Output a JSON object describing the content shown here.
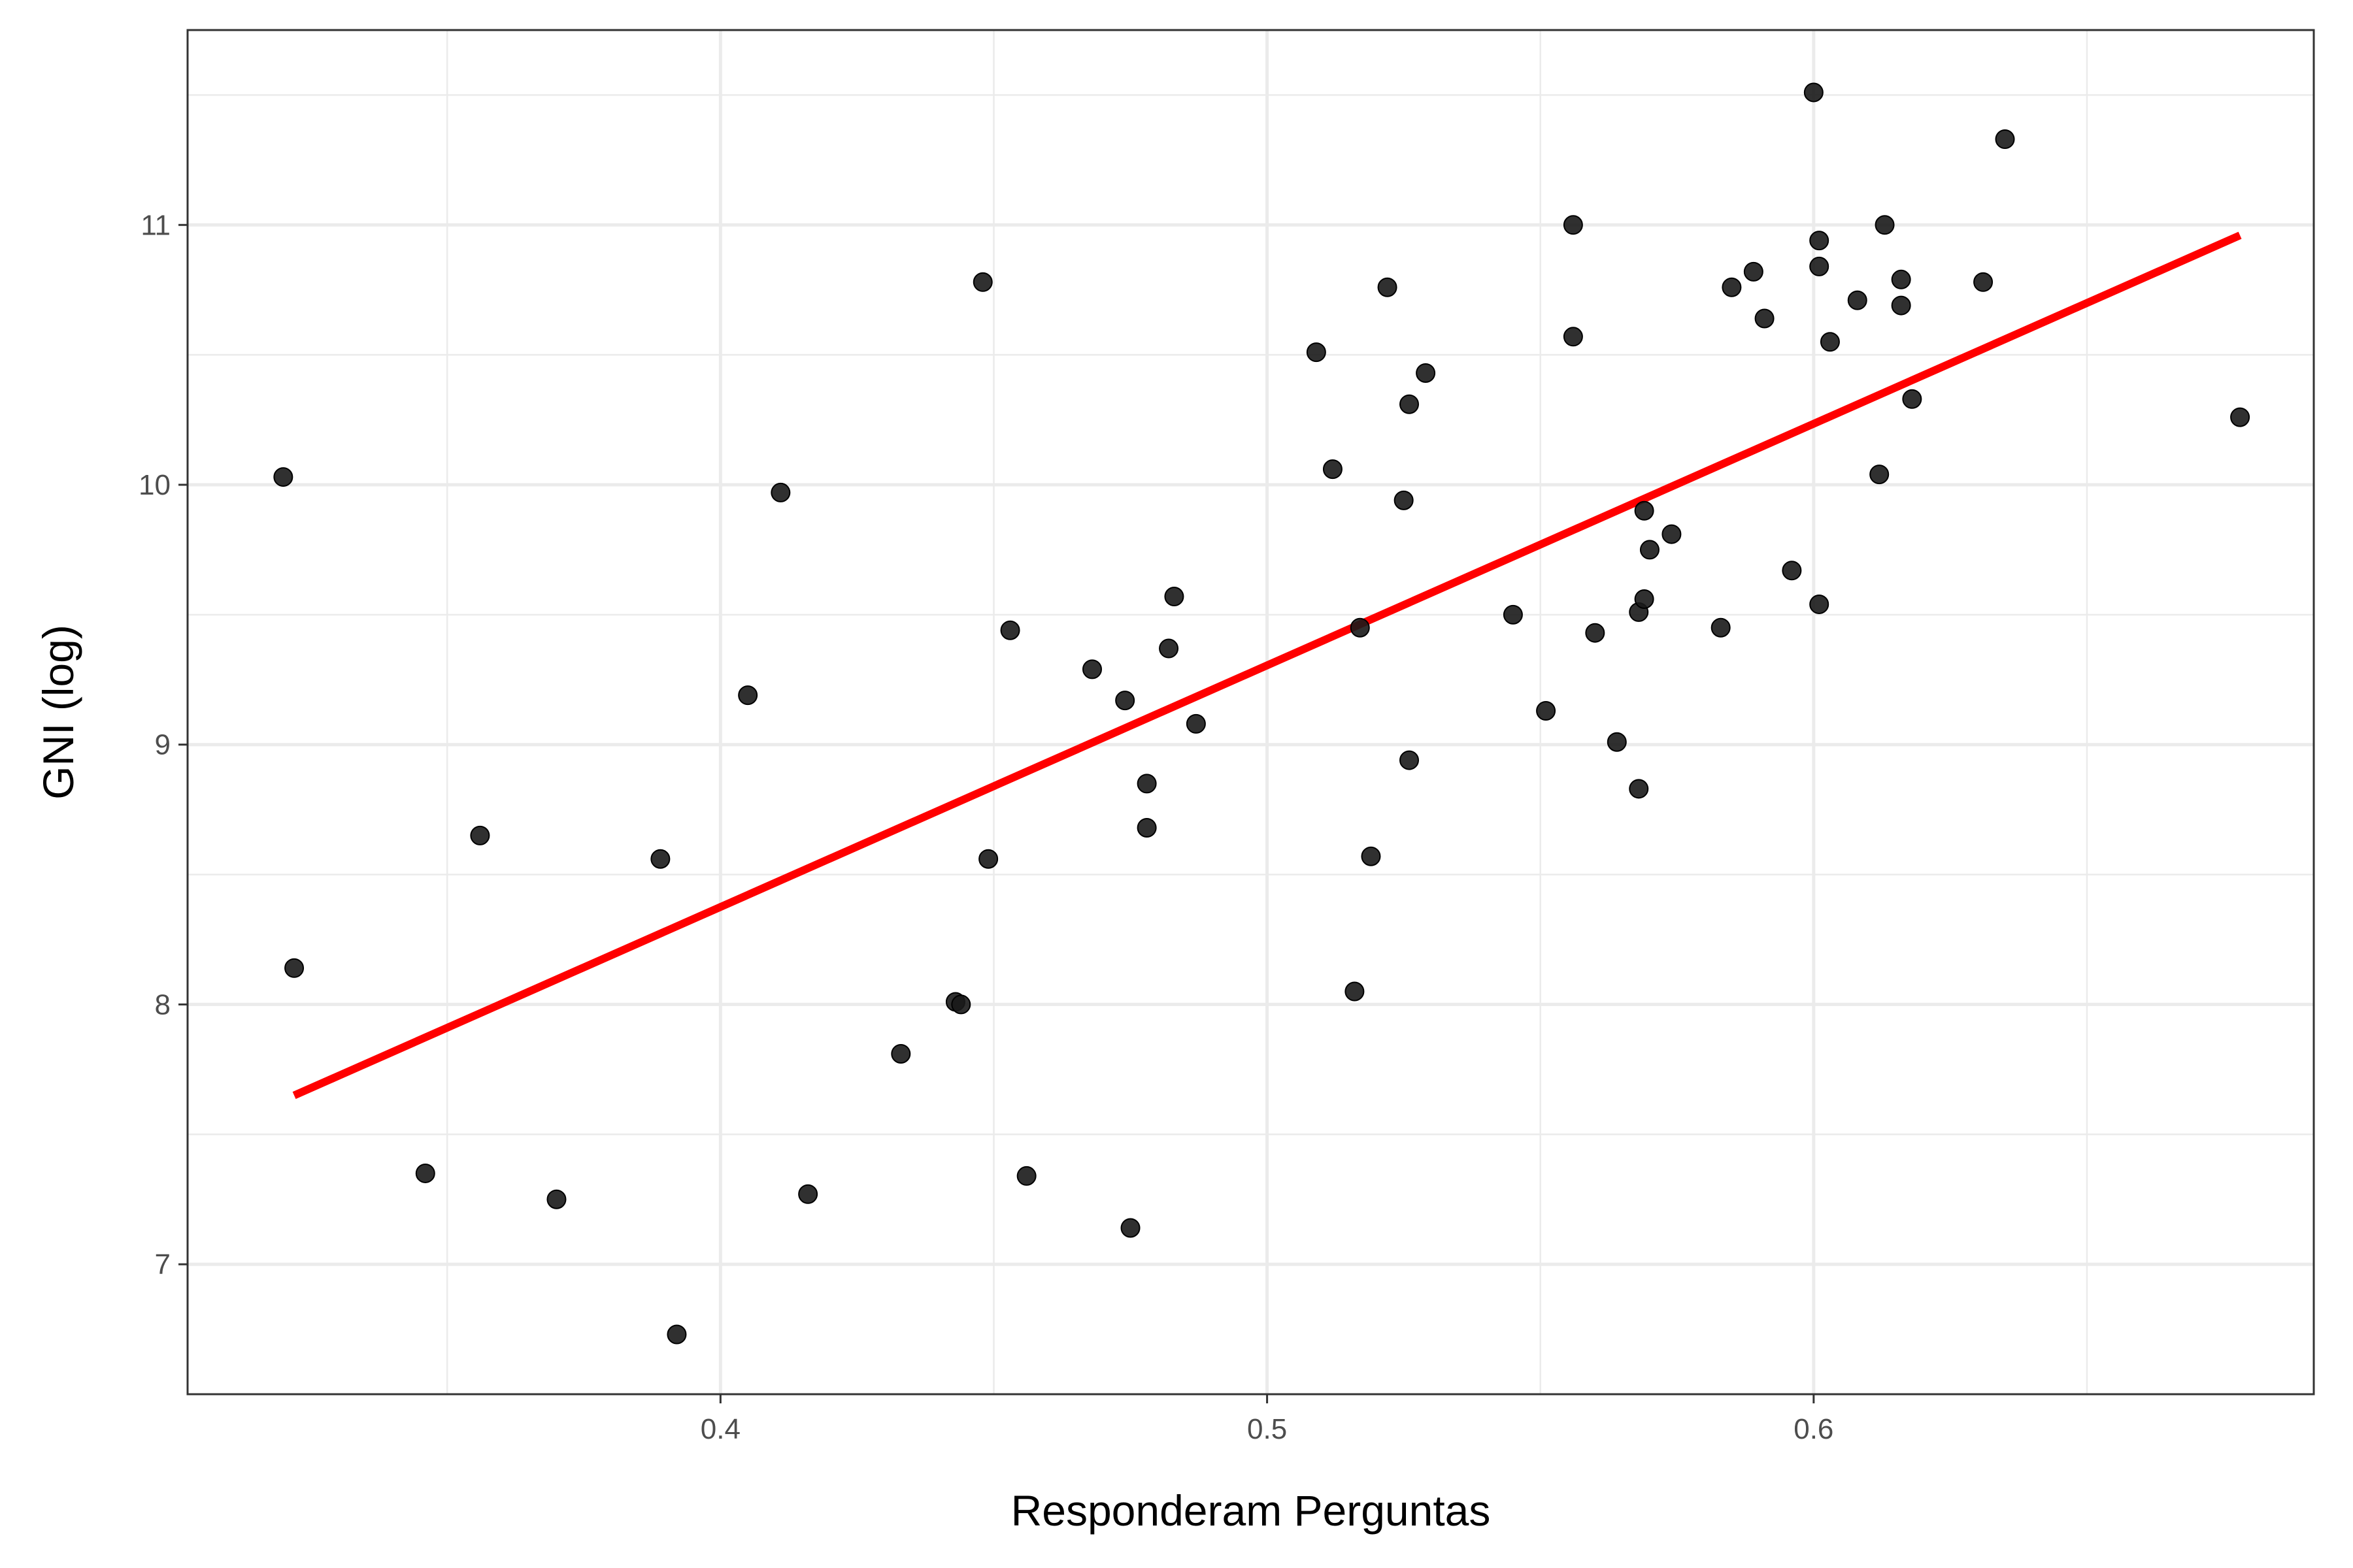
{
  "chart_data": {
    "type": "scatter",
    "title": "",
    "xlabel": "Responderam Perguntas",
    "ylabel": "GNI (log)",
    "xlim": [
      0.3025,
      0.6915
    ],
    "ylim": [
      6.5,
      11.75
    ],
    "x_ticks": [
      0.4,
      0.5,
      0.6
    ],
    "x_tick_labels": [
      "0.4",
      "0.5",
      "0.6"
    ],
    "y_ticks": [
      7,
      8,
      9,
      10,
      11
    ],
    "y_tick_labels": [
      "7",
      "8",
      "9",
      "10",
      "11"
    ],
    "grid": true,
    "legend": "none",
    "colors": {
      "points": "#1a1a1a",
      "fit_line": "#ff0000",
      "grid": "#ebebeb",
      "panel_border": "#333333"
    },
    "points": [
      [
        0.32,
        10.03
      ],
      [
        0.322,
        8.14
      ],
      [
        0.346,
        7.35
      ],
      [
        0.356,
        8.65
      ],
      [
        0.37,
        7.25
      ],
      [
        0.389,
        8.56
      ],
      [
        0.392,
        6.73
      ],
      [
        0.405,
        9.19
      ],
      [
        0.411,
        9.97
      ],
      [
        0.416,
        7.27
      ],
      [
        0.433,
        7.81
      ],
      [
        0.443,
        8.01
      ],
      [
        0.444,
        8.0
      ],
      [
        0.448,
        10.78
      ],
      [
        0.449,
        8.56
      ],
      [
        0.453,
        9.44
      ],
      [
        0.456,
        7.34
      ],
      [
        0.468,
        9.29
      ],
      [
        0.474,
        9.17
      ],
      [
        0.475,
        7.14
      ],
      [
        0.478,
        8.68
      ],
      [
        0.478,
        8.85
      ],
      [
        0.482,
        9.37
      ],
      [
        0.483,
        9.57
      ],
      [
        0.487,
        9.08
      ],
      [
        0.509,
        10.51
      ],
      [
        0.512,
        10.06
      ],
      [
        0.516,
        8.05
      ],
      [
        0.517,
        9.45
      ],
      [
        0.519,
        8.57
      ],
      [
        0.522,
        10.76
      ],
      [
        0.525,
        9.94
      ],
      [
        0.526,
        10.31
      ],
      [
        0.526,
        8.94
      ],
      [
        0.529,
        10.43
      ],
      [
        0.545,
        9.5
      ],
      [
        0.551,
        9.13
      ],
      [
        0.556,
        11.0
      ],
      [
        0.556,
        10.57
      ],
      [
        0.56,
        9.43
      ],
      [
        0.564,
        9.01
      ],
      [
        0.568,
        9.51
      ],
      [
        0.568,
        8.83
      ],
      [
        0.569,
        9.9
      ],
      [
        0.569,
        9.56
      ],
      [
        0.57,
        9.75
      ],
      [
        0.574,
        9.81
      ],
      [
        0.583,
        9.45
      ],
      [
        0.585,
        10.76
      ],
      [
        0.589,
        10.82
      ],
      [
        0.591,
        10.64
      ],
      [
        0.596,
        9.67
      ],
      [
        0.6,
        11.51
      ],
      [
        0.601,
        10.94
      ],
      [
        0.601,
        10.84
      ],
      [
        0.601,
        9.54
      ],
      [
        0.603,
        10.55
      ],
      [
        0.608,
        10.71
      ],
      [
        0.612,
        10.04
      ],
      [
        0.613,
        11.0
      ],
      [
        0.616,
        10.79
      ],
      [
        0.616,
        10.69
      ],
      [
        0.618,
        10.33
      ],
      [
        0.631,
        10.78
      ],
      [
        0.635,
        11.33
      ],
      [
        0.678,
        10.26
      ]
    ],
    "fit_line": {
      "x": [
        0.322,
        0.678
      ],
      "y": [
        7.65,
        10.96
      ]
    }
  }
}
